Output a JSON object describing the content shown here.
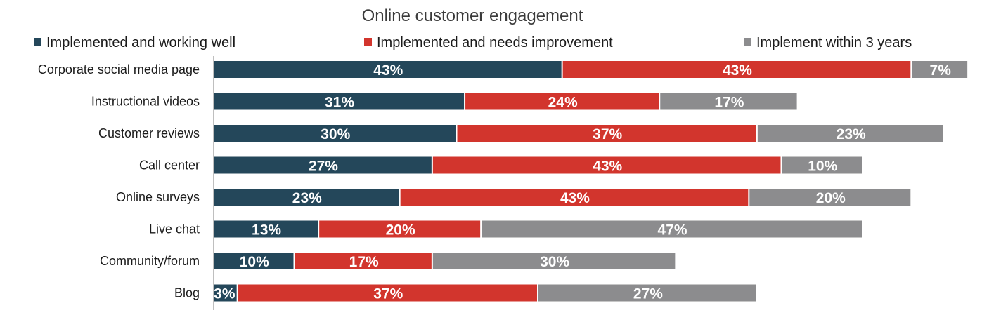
{
  "chart_data": {
    "type": "bar",
    "orientation": "horizontal",
    "stacked": true,
    "title": "Online customer engagement",
    "categories": [
      "Corporate social media page",
      "Instructional videos",
      "Customer reviews",
      "Call center",
      "Online surveys",
      "Live chat",
      "Community/forum",
      "Blog"
    ],
    "series": [
      {
        "name": "Implemented and working well",
        "color": "#24475a",
        "values": [
          43,
          31,
          30,
          27,
          23,
          13,
          10,
          3
        ]
      },
      {
        "name": "Implemented and needs improvement",
        "color": "#d2352d",
        "values": [
          43,
          24,
          37,
          43,
          43,
          20,
          17,
          37
        ]
      },
      {
        "name": "Implement within 3 years",
        "color": "#8c8c8e",
        "values": [
          7,
          17,
          23,
          10,
          20,
          47,
          30,
          27
        ]
      }
    ],
    "value_suffix": "%",
    "legend_position": "top",
    "grid": false,
    "xlim": [
      0,
      95
    ]
  }
}
